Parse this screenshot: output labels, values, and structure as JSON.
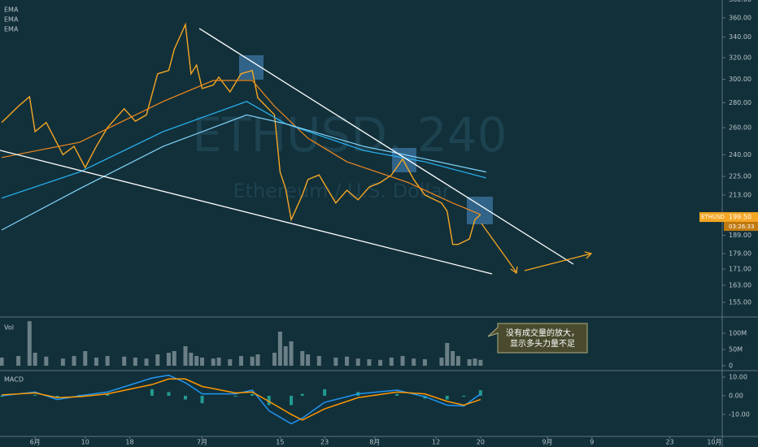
{
  "chart_data": [
    {
      "type": "line",
      "title": "ETHUSD, 240",
      "subtitle": "Ethereum / U.S. Dollar",
      "log": true,
      "xlim": [
        -6.3,
        123.4
      ],
      "ylim": [
        148.4,
        379.5
      ],
      "yticks": [
        {
          "value": 380,
          "label": "380.00"
        },
        {
          "value": 360,
          "label": "360.00"
        },
        {
          "value": 340,
          "label": "340.00"
        },
        {
          "value": 320,
          "label": "320.00"
        },
        {
          "value": 300,
          "label": "300.00"
        },
        {
          "value": 280,
          "label": "280.00"
        },
        {
          "value": 260,
          "label": "260.00"
        },
        {
          "value": 240,
          "label": "240.00"
        },
        {
          "value": 225,
          "label": "225.00"
        },
        {
          "value": 213,
          "label": "213.00"
        },
        {
          "value": 189,
          "label": "189.00"
        },
        {
          "value": 179,
          "label": "179.00"
        },
        {
          "value": 171,
          "label": "171.00"
        },
        {
          "value": 163,
          "label": "163.00"
        },
        {
          "value": 155,
          "label": "155.00"
        }
      ],
      "last_price": {
        "value": 199.5,
        "label": "199.50",
        "countdown": "03:26:33"
      },
      "series": [
        {
          "name": "ETHUSD",
          "color": "#f5a623",
          "x": [
            -6,
            -3,
            -1,
            0,
            2,
            5,
            7,
            9,
            11,
            13,
            16,
            18,
            20,
            22,
            24,
            25,
            27,
            28,
            29,
            30,
            32,
            33,
            35,
            37,
            39,
            40,
            43,
            44,
            45,
            46,
            48,
            49,
            51,
            54,
            56,
            58,
            60,
            62,
            64,
            66,
            68,
            70,
            73,
            74,
            75,
            76,
            78,
            79,
            80
          ],
          "values": [
            264,
            277,
            285,
            257,
            264,
            240,
            246,
            231,
            246,
            260,
            275,
            265,
            270,
            305,
            308,
            328,
            353,
            305,
            313,
            292,
            295,
            302,
            289,
            305,
            308,
            284,
            270,
            228,
            217,
            198,
            213,
            223,
            226,
            208,
            216,
            210,
            218,
            221,
            226,
            237,
            223,
            213,
            208,
            203,
            184,
            184,
            187,
            198,
            201
          ]
        },
        {
          "name": "EMA",
          "color": "#f0891e",
          "x": [
            -6,
            8,
            23,
            32,
            39,
            43,
            49,
            56,
            67,
            75,
            80
          ],
          "values": [
            238,
            249,
            281,
            299,
            299,
            277,
            252,
            235,
            221,
            208,
            201
          ]
        },
        {
          "name": "EMA",
          "color": "#29b6f6",
          "x": [
            -6,
            8,
            23,
            38,
            45,
            59,
            70,
            81
          ],
          "values": [
            211,
            228,
            257,
            281,
            263,
            243,
            235,
            224
          ]
        },
        {
          "name": "EMA",
          "color": "#81d4fa",
          "x": [
            -6,
            8,
            23,
            38,
            45,
            59,
            70,
            81
          ],
          "values": [
            192,
            217,
            246,
            270,
            263,
            246,
            237,
            228
          ]
        }
      ]
    },
    {
      "type": "bar",
      "title": "Vol",
      "color": "#8a9aa0",
      "xlim": [
        -6.3,
        123.4
      ],
      "ylim": [
        0,
        145000000
      ],
      "yticks": [
        {
          "value": 100000000,
          "label": "100M"
        },
        {
          "value": 50000000,
          "label": "50M"
        },
        0
      ],
      "annotation": [
        "没有成交量的放大，",
        "显示多头力量不足"
      ],
      "x": [
        -6,
        -3,
        -1,
        0,
        2,
        5,
        7,
        9,
        11,
        13,
        16,
        18,
        20,
        22,
        24,
        25,
        27,
        28,
        29,
        30,
        32,
        33,
        35,
        37,
        39,
        40,
        43,
        44,
        45,
        46,
        48,
        49,
        51,
        54,
        56,
        58,
        60,
        62,
        64,
        66,
        68,
        70,
        73,
        74,
        75,
        76,
        78,
        79,
        80
      ],
      "values": [
        25000000,
        30000000,
        137000000,
        40000000,
        28000000,
        22000000,
        30000000,
        45000000,
        25000000,
        30000000,
        28000000,
        25000000,
        22000000,
        35000000,
        40000000,
        45000000,
        60000000,
        40000000,
        30000000,
        25000000,
        22000000,
        25000000,
        20000000,
        30000000,
        28000000,
        35000000,
        40000000,
        105000000,
        60000000,
        75000000,
        45000000,
        35000000,
        30000000,
        25000000,
        28000000,
        22000000,
        20000000,
        18000000,
        25000000,
        30000000,
        22000000,
        20000000,
        25000000,
        70000000,
        45000000,
        30000000,
        20000000,
        22000000,
        18000000
      ]
    },
    {
      "type": "macd",
      "title": "MACD",
      "xlim": [
        -6.3,
        123.4
      ],
      "ylim": [
        -20.9,
        12.6
      ],
      "yticks": [
        {
          "value": 10,
          "label": "10.00"
        },
        {
          "value": 0,
          "label": "0.00"
        },
        {
          "value": -10,
          "label": "-10.00"
        }
      ],
      "xticks": [
        {
          "value": 0,
          "label": "6月"
        },
        {
          "value": 9,
          "label": "10"
        },
        {
          "value": 17,
          "label": "18"
        },
        {
          "value": 30,
          "label": "7月"
        },
        {
          "value": 44,
          "label": "15"
        },
        {
          "value": 52,
          "label": "23"
        },
        {
          "value": 61,
          "label": "8月"
        },
        {
          "value": 72,
          "label": "12"
        },
        {
          "value": 80,
          "label": "20"
        },
        {
          "value": 92,
          "label": "9月"
        },
        {
          "value": 100,
          "label": "9"
        },
        {
          "value": 114,
          "label": "23"
        },
        {
          "value": 122,
          "label": "10月"
        }
      ],
      "series": [
        {
          "kind": "bar",
          "color": "#26a69a",
          "x": [
            -6,
            0,
            4,
            8,
            13,
            21,
            24,
            27,
            30,
            36,
            39,
            42,
            46,
            48,
            52,
            58,
            65,
            70,
            74,
            77,
            80
          ],
          "values": [
            -0.5,
            0.5,
            -1,
            0.5,
            1,
            3.5,
            2,
            -2,
            -4,
            -0.5,
            1,
            -5,
            -5,
            1,
            3.5,
            2,
            1,
            -1.5,
            -2,
            -0.5,
            3
          ]
        },
        {
          "kind": "line",
          "color": "#2196f3",
          "x": [
            -6,
            0,
            4,
            8,
            13,
            21,
            24,
            27,
            30,
            36,
            39,
            42,
            46,
            48,
            52,
            58,
            65,
            70,
            74,
            77,
            80
          ],
          "values": [
            0,
            2,
            -2,
            0,
            2,
            9.5,
            11,
            7,
            1,
            1,
            3,
            -8,
            -15,
            -12,
            -3.5,
            1,
            3,
            -0.5,
            -5,
            -5.5,
            1
          ]
        },
        {
          "kind": "line",
          "color": "#ff9800",
          "x": [
            -6,
            0,
            4,
            8,
            13,
            21,
            24,
            27,
            30,
            36,
            39,
            42,
            46,
            48,
            52,
            58,
            65,
            70,
            74,
            77,
            80
          ],
          "values": [
            0.5,
            1.5,
            -1,
            -0.5,
            1,
            6,
            9,
            9,
            5,
            1.5,
            2,
            -3,
            -10,
            -13,
            -7,
            -1,
            2,
            1,
            -3,
            -5,
            -2
          ]
        }
      ]
    }
  ]
}
